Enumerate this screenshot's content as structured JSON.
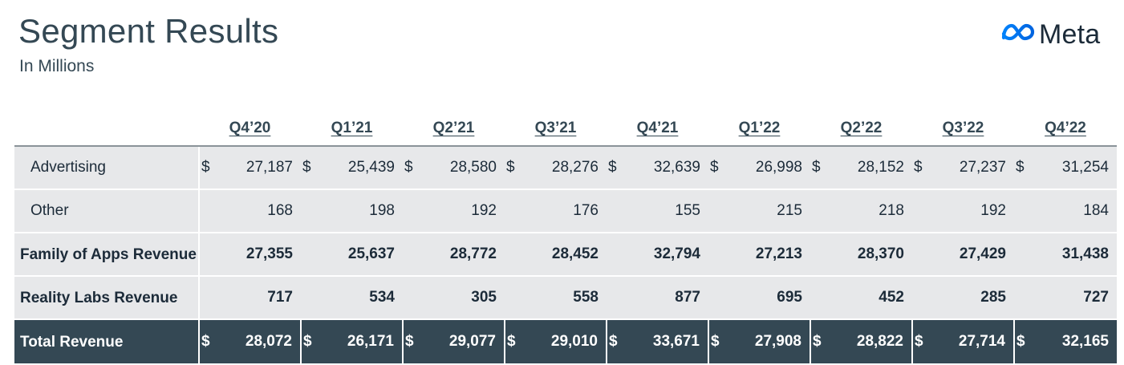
{
  "header": {
    "title": "Segment Results",
    "subtitle": "In Millions",
    "logo_text": "Meta"
  },
  "colors": {
    "header_text": "#344854",
    "row_background": "#e7e8ea",
    "total_background": "#344854",
    "logo_blue": "#0668e1"
  },
  "icons": {
    "logo": "meta-infinity-icon"
  },
  "table": {
    "currency_symbol": "$",
    "columns": [
      "Q4’20",
      "Q1’21",
      "Q2’21",
      "Q3’21",
      "Q4’21",
      "Q1’22",
      "Q2’22",
      "Q3’22",
      "Q4’22"
    ],
    "rows": [
      {
        "label": "Advertising",
        "values": [
          "27,187",
          "25,439",
          "28,580",
          "28,276",
          "32,639",
          "26,998",
          "28,152",
          "27,237",
          "31,254"
        ],
        "show_currency": true,
        "bold": false
      },
      {
        "label": "Other",
        "values": [
          "168",
          "198",
          "192",
          "176",
          "155",
          "215",
          "218",
          "192",
          "184"
        ],
        "show_currency": false,
        "bold": false
      },
      {
        "label": "Family of Apps Revenue",
        "values": [
          "27,355",
          "25,637",
          "28,772",
          "28,452",
          "32,794",
          "27,213",
          "28,370",
          "27,429",
          "31,438"
        ],
        "show_currency": false,
        "bold": true
      },
      {
        "label": "Reality Labs Revenue",
        "values": [
          "717",
          "534",
          "305",
          "558",
          "877",
          "695",
          "452",
          "285",
          "727"
        ],
        "show_currency": false,
        "bold": true
      }
    ],
    "total": {
      "label": "Total Revenue",
      "values": [
        "28,072",
        "26,171",
        "29,077",
        "29,010",
        "33,671",
        "27,908",
        "28,822",
        "27,714",
        "32,165"
      ],
      "show_currency": true
    }
  }
}
